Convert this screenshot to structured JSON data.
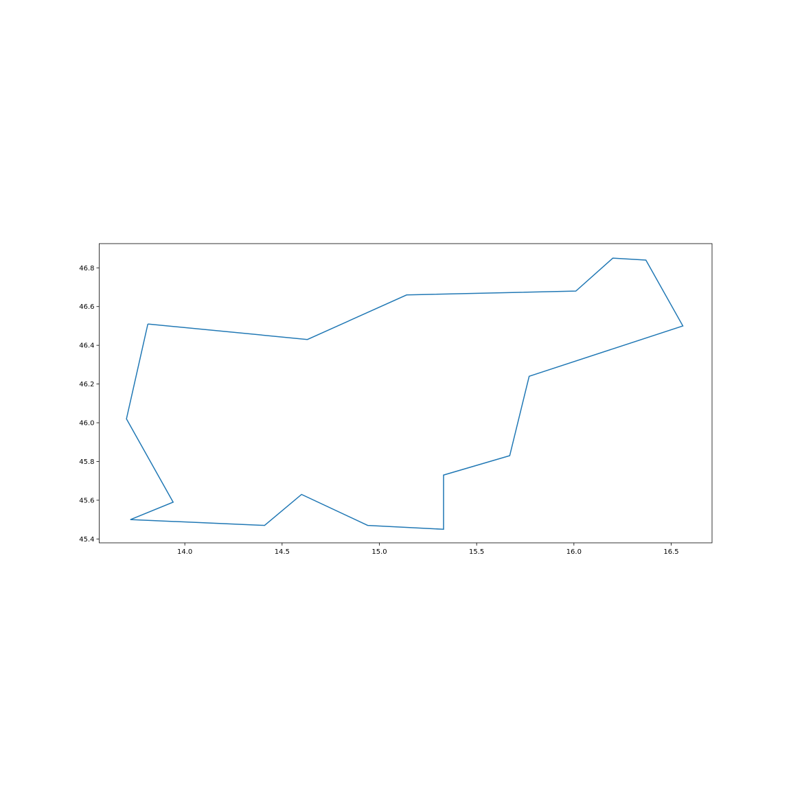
{
  "chart_data": {
    "type": "line",
    "title": "",
    "xlabel": "",
    "ylabel": "",
    "xlim": [
      13.56,
      16.71
    ],
    "ylim": [
      45.38,
      46.925
    ],
    "xticks": [
      14.0,
      14.5,
      15.0,
      15.5,
      16.0,
      16.5
    ],
    "xtick_labels": [
      "14.0",
      "14.5",
      "15.0",
      "15.5",
      "16.0",
      "16.5"
    ],
    "yticks": [
      45.4,
      45.6,
      45.8,
      46.0,
      46.2,
      46.4,
      46.6,
      46.8
    ],
    "ytick_labels": [
      "45.4",
      "45.6",
      "45.8",
      "46.0",
      "46.2",
      "46.4",
      "46.6",
      "46.8"
    ],
    "grid": false,
    "legend": "none",
    "series": [
      {
        "color": "#1f77b4",
        "x": [
          13.81,
          14.63,
          15.14,
          16.01,
          16.2,
          16.37,
          16.56,
          15.77,
          15.67,
          15.33,
          15.33,
          14.94,
          14.6,
          14.41,
          13.72,
          13.94,
          13.7,
          13.81
        ],
        "y": [
          46.51,
          46.43,
          46.66,
          46.68,
          46.85,
          46.84,
          46.5,
          46.24,
          45.83,
          45.73,
          45.45,
          45.47,
          45.63,
          45.47,
          45.5,
          45.59,
          46.02,
          46.51
        ]
      }
    ]
  }
}
